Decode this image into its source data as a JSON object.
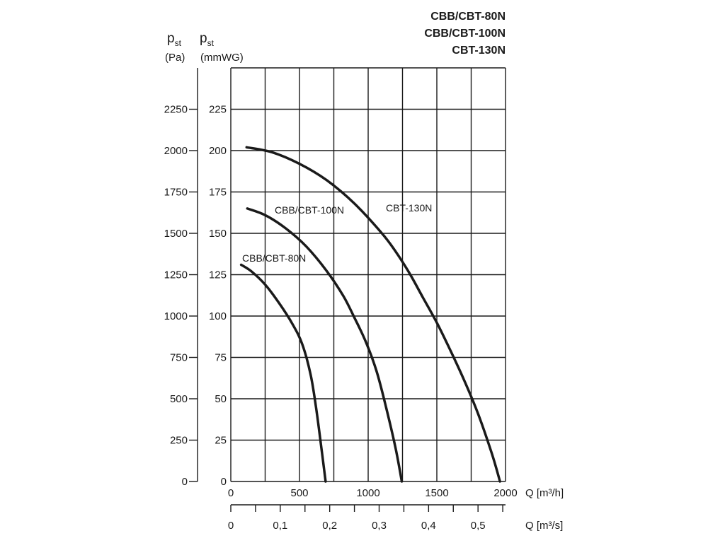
{
  "chart_data": {
    "type": "line",
    "title_lines": [
      "CBB/CBT-80N",
      "CBB/CBT-100N",
      "CBT-130N"
    ],
    "y_axes": [
      {
        "symbol": "p",
        "subscript": "st",
        "unit": "(Pa)",
        "range": [
          0,
          2500
        ],
        "ticks": [
          0,
          250,
          500,
          750,
          1000,
          1250,
          1500,
          1750,
          2000,
          2250
        ],
        "tick_labels": [
          "0",
          "250",
          "500",
          "750",
          "1000",
          "1250",
          "1500",
          "1750",
          "2000",
          "2250"
        ]
      },
      {
        "symbol": "p",
        "subscript": "st",
        "unit": "(mmWG)",
        "range": [
          0,
          250
        ],
        "ticks": [
          0,
          25,
          50,
          75,
          100,
          125,
          150,
          175,
          200,
          225
        ],
        "tick_labels": [
          "0",
          "25",
          "50",
          "75",
          "100",
          "125",
          "150",
          "175",
          "200",
          "225"
        ]
      }
    ],
    "x_axes": [
      {
        "label": "Q [m³/h]",
        "range": [
          0,
          2000
        ],
        "ticks": [
          0,
          500,
          1000,
          1500,
          2000
        ],
        "tick_labels": [
          "0",
          "500",
          "1000",
          "1500",
          "2000"
        ]
      },
      {
        "label": "Q [m³/s]",
        "range": [
          0,
          0.5556
        ],
        "ticks": [
          0,
          0.1,
          0.2,
          0.3,
          0.4,
          0.5
        ],
        "tick_labels": [
          "0",
          "0,1",
          "0,2",
          "0,3",
          "0,4",
          "0,5"
        ]
      }
    ],
    "grid": true,
    "series": [
      {
        "name": "CBB/CBT-80N",
        "x": [
          75,
          150,
          250,
          350,
          450,
          520,
          580,
          620,
          660,
          690
        ],
        "y": [
          131,
          127,
          119,
          108,
          95,
          83,
          65,
          45,
          20,
          0
        ]
      },
      {
        "name": "CBB/CBT-100N",
        "x": [
          120,
          250,
          400,
          550,
          700,
          820,
          900,
          980,
          1060,
          1130,
          1200,
          1245
        ],
        "y": [
          165,
          161,
          153,
          142,
          127,
          112,
          99,
          85,
          67,
          45,
          20,
          0
        ]
      },
      {
        "name": "CBT-130N",
        "x": [
          115,
          300,
          500,
          700,
          900,
          1100,
          1200,
          1300,
          1400,
          1500,
          1600,
          1700,
          1800,
          1900,
          1960
        ],
        "y": [
          202,
          199,
          192,
          182,
          168,
          150,
          139,
          126,
          111,
          96,
          79,
          61,
          41,
          17,
          0
        ]
      }
    ]
  }
}
